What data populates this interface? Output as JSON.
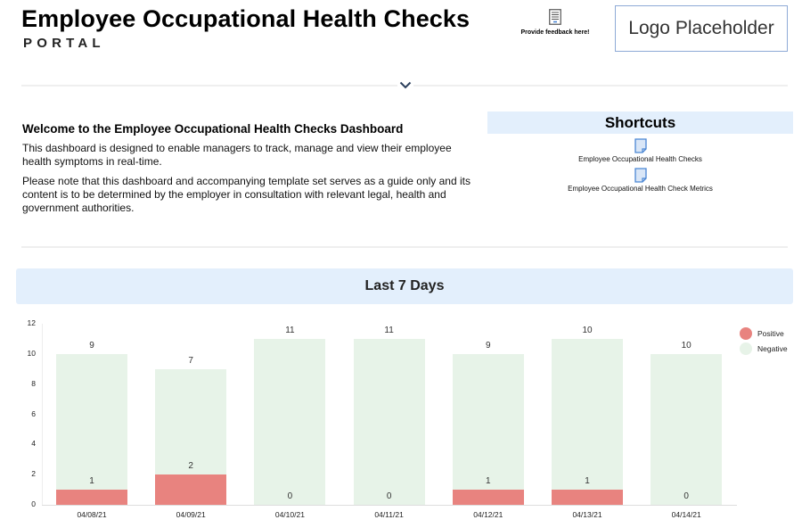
{
  "header": {
    "title": "Employee Occupational Health Checks",
    "subtitle": "PORTAL",
    "feedback_label": "Provide feedback here!",
    "feedback_icon": "document-icon",
    "logo_text": "Logo Placeholder",
    "expand_icon": "chevron-down-icon"
  },
  "welcome": {
    "heading": "Welcome to the Employee Occupational Health Checks Dashboard",
    "paragraph1": "This dashboard is designed to enable managers to track, manage and view their employee health symptoms in real-time.",
    "paragraph2": "Please note that this dashboard and accompanying template set serves as a guide only and its content is to be determined by the employer in consultation with relevant legal, health and government authorities."
  },
  "shortcuts": {
    "title": "Shortcuts",
    "items": [
      {
        "label": "Employee Occupational Health Checks",
        "icon": "sheet-file-icon"
      },
      {
        "label": "Employee Occupational Health Check Metrics",
        "icon": "sheet-file-icon"
      }
    ]
  },
  "section": {
    "title": "Last 7 Days"
  },
  "colors": {
    "positive": "#e8837f",
    "negative": "#e7f3e8",
    "section_bg": "#e3effc",
    "logo_border": "#8eaad6",
    "icon_blue": "#4a86d4"
  },
  "chart_data": {
    "type": "bar",
    "stacked": true,
    "title": "Last 7 Days",
    "xlabel": "",
    "ylabel": "",
    "ylim": [
      0,
      12
    ],
    "yticks": [
      0,
      2,
      4,
      6,
      8,
      10,
      12
    ],
    "grid": false,
    "legend_position": "right",
    "categories": [
      "04/08/21",
      "04/09/21",
      "04/10/21",
      "04/11/21",
      "04/12/21",
      "04/13/21",
      "04/14/21"
    ],
    "series": [
      {
        "name": "Positive",
        "color": "#e8837f",
        "values": [
          1,
          2,
          0,
          0,
          1,
          1,
          0
        ]
      },
      {
        "name": "Negative",
        "color": "#e7f3e8",
        "values": [
          9,
          7,
          11,
          11,
          9,
          10,
          10
        ]
      }
    ]
  }
}
